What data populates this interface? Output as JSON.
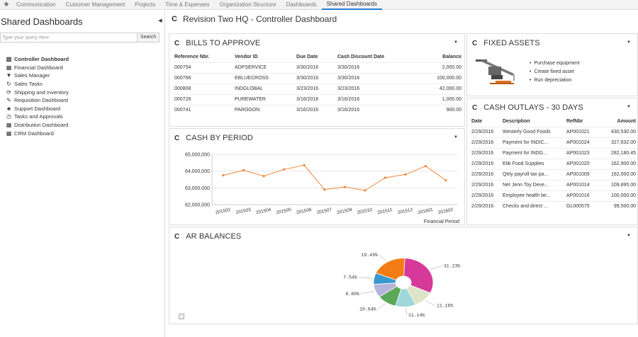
{
  "topnav": {
    "tabs": [
      "Communication",
      "Customer Management",
      "Projects",
      "Time & Expenses",
      "Organization Structure",
      "Dashboards",
      "Shared Dashboards"
    ],
    "active_index": 6
  },
  "sidebar": {
    "title": "Shared Dashboards",
    "search_placeholder": "Type your query here",
    "search_button": "Search",
    "items": [
      {
        "label": "Controller Dashboard",
        "icon": "chart-icon",
        "bold": true
      },
      {
        "label": "Financial Dashboard",
        "icon": "calculator-icon"
      },
      {
        "label": "Sales Manager",
        "icon": "funnel-icon"
      },
      {
        "label": "Sales Tasks",
        "icon": "refresh-icon"
      },
      {
        "label": "Shipping and Inventory",
        "icon": "sync-icon"
      },
      {
        "label": "Requisition Dashboard",
        "icon": "pencil-icon"
      },
      {
        "label": "Support Dashboard",
        "icon": "users-icon"
      },
      {
        "label": "Tasks and Approvals",
        "icon": "clock-icon"
      },
      {
        "label": "Distribution Dashboard",
        "icon": "calculator-icon"
      },
      {
        "label": "CRM Dashboard",
        "icon": "calculator-icon"
      }
    ]
  },
  "main": {
    "title": "Revision Two HQ - Controller Dashboard"
  },
  "bills": {
    "title": "BILLS TO APPROVE",
    "columns": [
      "Reference Nbr.",
      "Vendor ID",
      "Due Date",
      "Cash Discount Date",
      "Balance"
    ],
    "rows": [
      [
        "000754",
        "ADPSERVICE",
        "3/30/2016",
        "3/30/2016",
        "2,000.00"
      ],
      [
        "000766",
        "EBLUECROSS",
        "3/30/2016",
        "3/30/2016",
        "100,000.00"
      ],
      [
        "000808",
        "INDGLOBAL",
        "3/23/2016",
        "3/23/2016",
        "42,000.00"
      ],
      [
        "000726",
        "PUREWATER",
        "3/16/2016",
        "3/16/2016",
        "1,000.00"
      ],
      [
        "000741",
        "PAROGON",
        "3/16/2016",
        "3/16/2016",
        "900.00"
      ]
    ]
  },
  "fixed_assets": {
    "title": "FIXED ASSETS",
    "items": [
      "Purchase equipment",
      "Create fixed asset",
      "Run depreciation"
    ]
  },
  "cash_outlays": {
    "title": "CASH OUTLAYS - 30 DAYS",
    "columns": [
      "Date",
      "Description",
      "RefNbr",
      "Amount"
    ],
    "rows": [
      [
        "2/29/2016",
        "Westerly Good Foods",
        "AP001021",
        "430,530.00"
      ],
      [
        "2/29/2016",
        "Payment for INDIC...",
        "AP001024",
        "327,632.00"
      ],
      [
        "2/29/2016",
        "Payment for INDG...",
        "AP001023",
        "282,180.45"
      ],
      [
        "2/29/2016",
        "Etik Food Supplies",
        "AP001020",
        "162,900.00"
      ],
      [
        "2/29/2016",
        "Qtrly payroll tax pa...",
        "AP001009",
        "162,000.00"
      ],
      [
        "2/29/2016",
        "Net Jenn Toy Deve...",
        "AP001014",
        "109,895.00"
      ],
      [
        "2/29/2016",
        "Employee health be...",
        "AP001016",
        "100,000.00"
      ],
      [
        "2/29/2016",
        "Checks and direct ...",
        "GL000575",
        "99,500.00"
      ]
    ]
  },
  "chart_data": [
    {
      "type": "line",
      "title": "CASH BY PERIOD",
      "xlabel": "Financial Period",
      "ylabel": "",
      "categories": [
        "201502",
        "201503",
        "201504",
        "201505",
        "201506",
        "201507",
        "201509",
        "201510",
        "201511",
        "201512",
        "201601",
        "201602"
      ],
      "values": [
        63750000,
        64050000,
        63700000,
        64100000,
        64350000,
        62900000,
        63050000,
        62850000,
        63600000,
        63800000,
        64300000,
        63450000
      ],
      "ylim": [
        62000000,
        65000000
      ],
      "yticks": [
        "62,000,000",
        "63,000,000",
        "64,000,000",
        "65,000,000"
      ],
      "color": "#f0883a",
      "grid": true
    },
    {
      "type": "pie",
      "title": "AR BALANCES",
      "values": [
        31.23,
        11.16,
        11.14,
        10.64,
        8.8,
        7.54,
        19.49
      ],
      "labels": [
        "31.23%",
        "11.16%",
        "11.14%",
        "10.64%",
        "8.80%",
        "7.54%",
        "19.49%"
      ],
      "colors": [
        "#d6399a",
        "#dfe4c8",
        "#9fd8d8",
        "#5aa858",
        "#b6b4d8",
        "#3898d0",
        "#f57c15"
      ]
    }
  ]
}
